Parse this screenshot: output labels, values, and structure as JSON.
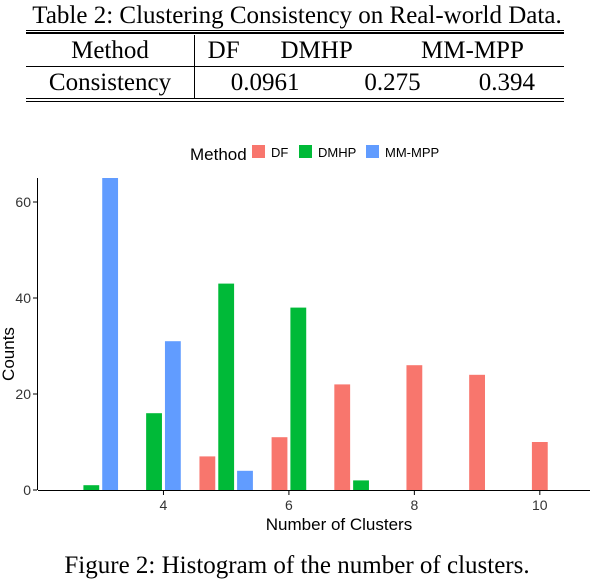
{
  "table": {
    "caption": "Table 2: Clustering Consistency on Real-world Data.",
    "header": [
      "Method",
      "DF",
      "DMHP",
      "MM-MPP"
    ],
    "rows": [
      [
        "Consistency",
        "0.0961",
        "0.275",
        "0.394"
      ]
    ]
  },
  "figure": {
    "caption": "Figure 2: Histogram of the number of clusters."
  },
  "chart_data": {
    "type": "bar",
    "xlabel": "Number of Clusters",
    "ylabel": "Counts",
    "legend_title": "Method",
    "legend_position": "top",
    "grid": false,
    "xlim": [
      2.0,
      10.8
    ],
    "ylim": [
      0,
      65
    ],
    "xticks": [
      4,
      6,
      8,
      10
    ],
    "yticks": [
      0,
      20,
      40,
      60
    ],
    "x": [
      3,
      4,
      5,
      6,
      7,
      8,
      9,
      10
    ],
    "series": [
      {
        "name": "DF",
        "color": "#F8766D",
        "values": [
          0,
          0,
          7,
          11,
          22,
          26,
          24,
          10
        ]
      },
      {
        "name": "DMHP",
        "color": "#00BA38",
        "values": [
          1,
          16,
          43,
          38,
          2,
          0,
          0,
          0
        ]
      },
      {
        "name": "MM-MPP",
        "color": "#619CFF",
        "values": [
          65,
          31,
          4,
          0,
          0,
          0,
          0,
          0
        ]
      }
    ]
  }
}
